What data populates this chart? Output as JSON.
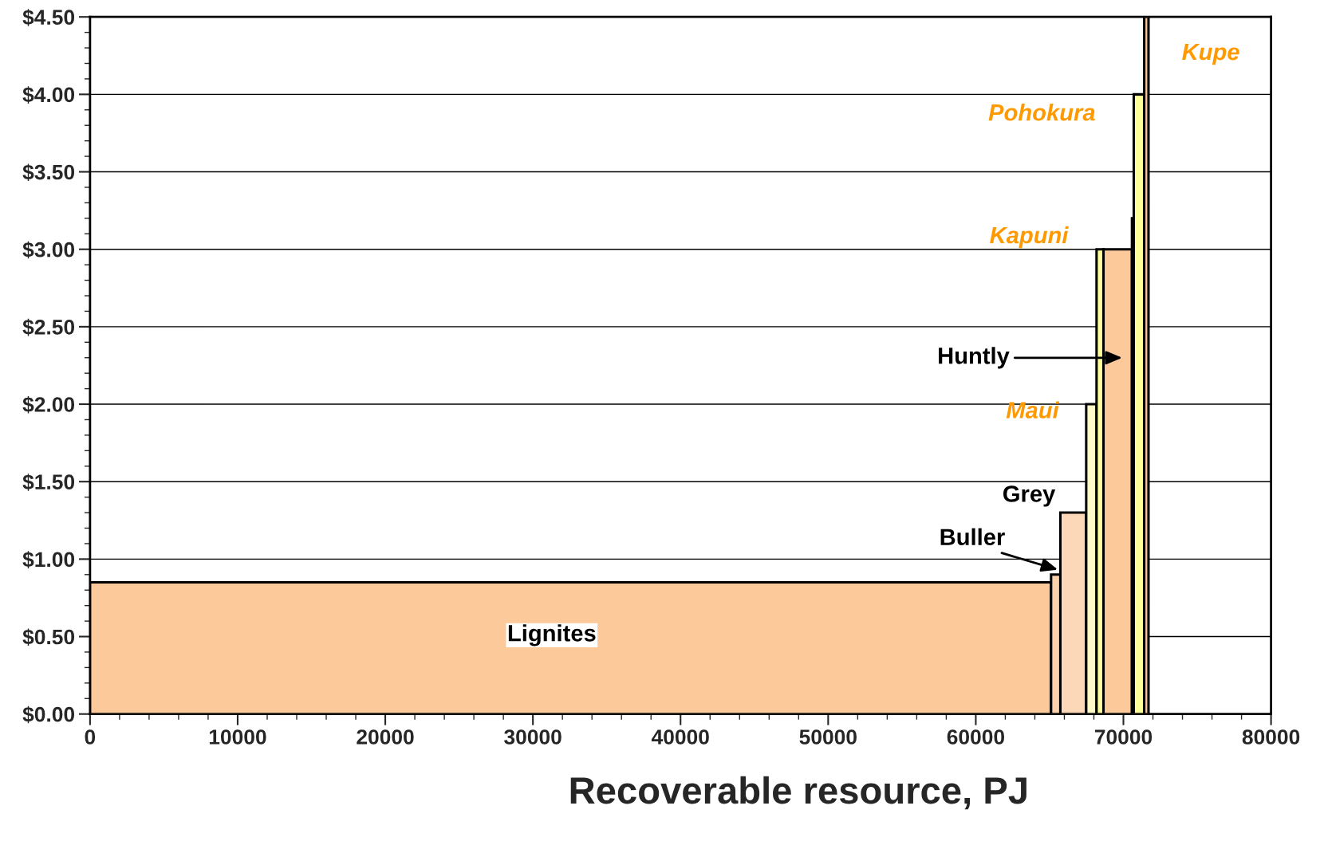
{
  "chart_data": {
    "type": "histogram",
    "xlabel": "Recoverable resource, PJ",
    "bins": [
      0,
      65100,
      65730,
      67480,
      68180,
      68650,
      70580,
      70700,
      71410,
      71700
    ],
    "values": [
      0.85,
      0.9,
      1.3,
      2.0,
      3.0,
      3.0,
      3.2,
      4.0,
      4.5
    ],
    "colors": [
      "#fcc99a",
      "#fcd2ad",
      "#fcd8b8",
      "#fffbc8",
      "#ffff99",
      "#fcc99a",
      "#fcc99a",
      "#ffff99",
      "#fcc99a"
    ],
    "xlim": [
      0,
      80000
    ],
    "xticks": [
      0,
      10000,
      20000,
      30000,
      40000,
      50000,
      60000,
      70000,
      80000
    ],
    "ylim": [
      0,
      4.5
    ],
    "yticks": [
      {
        "value": 0,
        "label": "$0.00"
      },
      {
        "value": 0.5,
        "label": "$0.50"
      },
      {
        "value": 1.0,
        "label": "$1.00"
      },
      {
        "value": 1.5,
        "label": "$1.50"
      },
      {
        "value": 2.0,
        "label": "$2.00"
      },
      {
        "value": 2.5,
        "label": "$2.50"
      },
      {
        "value": 3.0,
        "label": "$3.00"
      },
      {
        "value": 3.5,
        "label": "$3.50"
      },
      {
        "value": 4.0,
        "label": "$4.00"
      },
      {
        "value": 4.5,
        "label": "$4.50"
      }
    ],
    "grid": "y",
    "annotations": [
      "Lignites",
      "Buller",
      "Grey",
      "Maui",
      "Huntly",
      "Kapuni",
      "Pohokura",
      "Kupe"
    ]
  }
}
